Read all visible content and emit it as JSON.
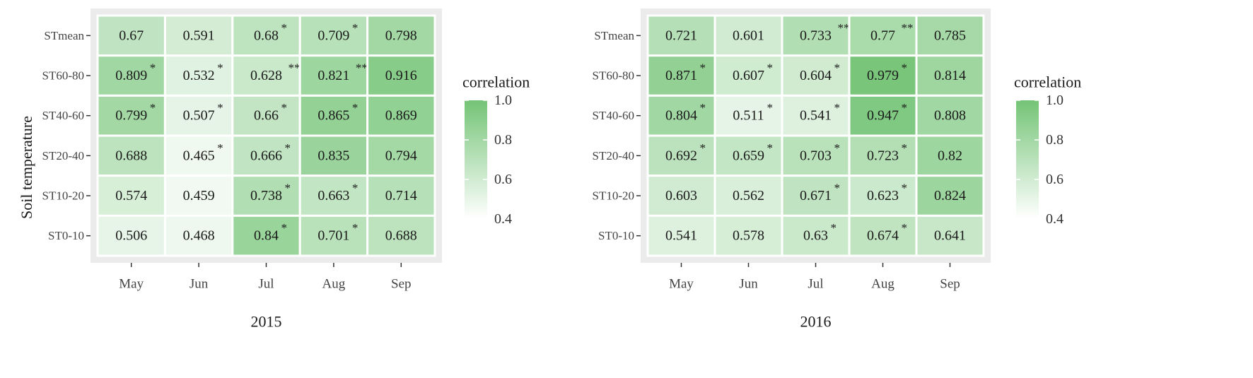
{
  "y_axis_title": "Soil temperature",
  "legend": {
    "title": "correlation",
    "ticks": [
      1.0,
      0.8,
      0.6,
      0.4
    ],
    "tick_labels": [
      "1.0",
      "0.8",
      "0.6",
      "0.4"
    ],
    "min": 0.4,
    "max": 1.0
  },
  "colors": {
    "panel_bg": "#ebebeb",
    "low": "#ffffff",
    "high": "#74c476",
    "cell_border": "#ffffff",
    "tick_mark": "#333333"
  },
  "chart_data": [
    {
      "type": "heatmap",
      "xlabel": "2015",
      "ylabel": "Soil temperature",
      "x": [
        "May",
        "Jun",
        "Jul",
        "Aug",
        "Sep"
      ],
      "y": [
        "STmean",
        "ST60-80",
        "ST40-60",
        "ST20-40",
        "ST10-20",
        "ST0-10"
      ],
      "values": [
        [
          0.67,
          0.591,
          0.68,
          0.709,
          0.798
        ],
        [
          0.809,
          0.532,
          0.628,
          0.821,
          0.916
        ],
        [
          0.799,
          0.507,
          0.66,
          0.865,
          0.869
        ],
        [
          0.688,
          0.465,
          0.666,
          0.835,
          0.794
        ],
        [
          0.574,
          0.459,
          0.738,
          0.663,
          0.714
        ],
        [
          0.506,
          0.468,
          0.84,
          0.701,
          0.688
        ]
      ],
      "labels": [
        [
          "0.67",
          "0.591",
          "0.68",
          "0.709",
          "0.798"
        ],
        [
          "0.809",
          "0.532",
          "0.628",
          "0.821",
          "0.916"
        ],
        [
          "0.799",
          "0.507",
          "0.66",
          "0.865",
          "0.869"
        ],
        [
          "0.688",
          "0.465",
          "0.666",
          "0.835",
          "0.794"
        ],
        [
          "0.574",
          "0.459",
          "0.738",
          "0.663",
          "0.714"
        ],
        [
          "0.506",
          "0.468",
          "0.84",
          "0.701",
          "0.688"
        ]
      ],
      "significance": [
        [
          "",
          "",
          "*",
          "*",
          ""
        ],
        [
          "*",
          "*",
          "**",
          "**",
          ""
        ],
        [
          "*",
          "*",
          "*",
          "*",
          ""
        ],
        [
          "",
          "*",
          "*",
          "",
          ""
        ],
        [
          "",
          "",
          "*",
          "*",
          ""
        ],
        [
          "",
          "",
          "*",
          "*",
          ""
        ]
      ],
      "color_range": [
        0.4,
        1.0
      ]
    },
    {
      "type": "heatmap",
      "xlabel": "2016",
      "ylabel": "",
      "x": [
        "May",
        "Jun",
        "Jul",
        "Aug",
        "Sep"
      ],
      "y": [
        "STmean",
        "ST60-80",
        "ST40-60",
        "ST20-40",
        "ST10-20",
        "ST0-10"
      ],
      "values": [
        [
          0.721,
          0.601,
          0.733,
          0.77,
          0.785
        ],
        [
          0.871,
          0.607,
          0.604,
          0.979,
          0.814
        ],
        [
          0.804,
          0.511,
          0.541,
          0.947,
          0.808
        ],
        [
          0.692,
          0.659,
          0.703,
          0.723,
          0.82
        ],
        [
          0.603,
          0.562,
          0.671,
          0.623,
          0.824
        ],
        [
          0.541,
          0.578,
          0.63,
          0.674,
          0.641
        ]
      ],
      "labels": [
        [
          "0.721",
          "0.601",
          "0.733",
          "0.77",
          "0.785"
        ],
        [
          "0.871",
          "0.607",
          "0.604",
          "0.979",
          "0.814"
        ],
        [
          "0.804",
          "0.511",
          "0.541",
          "0.947",
          "0.808"
        ],
        [
          "0.692",
          "0.659",
          "0.703",
          "0.723",
          "0.82"
        ],
        [
          "0.603",
          "0.562",
          "0.671",
          "0.623",
          "0.824"
        ],
        [
          "0.541",
          "0.578",
          "0.63",
          "0.674",
          "0.641"
        ]
      ],
      "significance": [
        [
          "",
          "",
          "**",
          "**",
          ""
        ],
        [
          "*",
          "*",
          "*",
          "*",
          ""
        ],
        [
          "*",
          "*",
          "*",
          "*",
          ""
        ],
        [
          "*",
          "*",
          "*",
          "*",
          ""
        ],
        [
          "",
          "",
          "*",
          "*",
          ""
        ],
        [
          "",
          "",
          "*",
          "*",
          ""
        ]
      ],
      "color_range": [
        0.4,
        1.0
      ]
    }
  ]
}
